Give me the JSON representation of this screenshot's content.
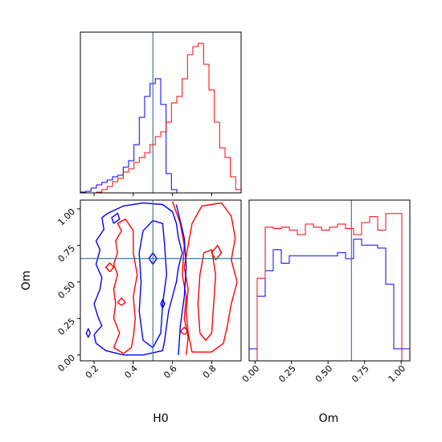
{
  "chart_data": {
    "type": "corner",
    "parameters": [
      "H0",
      "Om"
    ],
    "truth": {
      "H0": 0.5,
      "Om": 0.66
    },
    "colors": {
      "blue": "#0000ff",
      "red": "#ff0000",
      "truth": "#2a6fa0"
    },
    "ranges": {
      "H0": [
        0.13,
        0.95
      ],
      "Om": [
        -0.04,
        1.06
      ]
    },
    "ticks": {
      "H0": [
        "0.2",
        "0.4",
        "0.6",
        "0.8"
      ],
      "Om": [
        "0.00",
        "0.25",
        "0.50",
        "0.75",
        "1.00"
      ]
    },
    "H0_hist": {
      "edges": [
        0.13,
        0.1573,
        0.1847,
        0.212,
        0.2393,
        0.2667,
        0.294,
        0.3213,
        0.3487,
        0.376,
        0.4033,
        0.4307,
        0.458,
        0.4853,
        0.5127,
        0.54,
        0.5673,
        0.5947,
        0.622,
        0.6493,
        0.6767,
        0.704,
        0.7313,
        0.7587,
        0.786,
        0.8133,
        0.8407,
        0.868,
        0.8953,
        0.9227,
        0.95
      ],
      "blue": [
        0.005,
        0.01,
        0.03,
        0.05,
        0.065,
        0.08,
        0.1,
        0.11,
        0.16,
        0.2,
        0.3,
        0.47,
        0.6,
        0.68,
        0.71,
        0.55,
        0.12,
        0.02,
        0,
        0,
        0,
        0,
        0,
        0,
        0,
        0,
        0,
        0,
        0,
        0
      ],
      "red": [
        0,
        0,
        0,
        0.005,
        0.02,
        0.04,
        0.07,
        0.09,
        0.13,
        0.15,
        0.19,
        0.22,
        0.25,
        0.3,
        0.35,
        0.38,
        0.44,
        0.56,
        0.6,
        0.71,
        0.86,
        0.91,
        0.93,
        0.8,
        0.64,
        0.44,
        0.28,
        0.22,
        0.1,
        0.02
      ]
    },
    "Om_hist": {
      "edges": [
        -0.04,
        0.015,
        0.07,
        0.125,
        0.18,
        0.235,
        0.29,
        0.345,
        0.4,
        0.455,
        0.51,
        0.565,
        0.62,
        0.675,
        0.73,
        0.785,
        0.84,
        0.895,
        0.95,
        1.005,
        1.06
      ],
      "blue": [
        0.08,
        0.43,
        0.6,
        0.74,
        0.65,
        0.7,
        0.7,
        0.7,
        0.7,
        0.7,
        0.7,
        0.72,
        0.68,
        0.81,
        0.77,
        0.77,
        0.75,
        0.51,
        0.08,
        0.08
      ],
      "red": [
        0,
        0.55,
        0.89,
        0.88,
        0.89,
        0.87,
        0.84,
        0.91,
        0.89,
        0.87,
        0.89,
        0.91,
        0.88,
        0.84,
        0.92,
        0.96,
        0.87,
        0.98,
        0.98,
        0
      ]
    },
    "contours": {
      "blue": [
        [
          [
            0.2,
            0.14
          ],
          [
            0.24,
            0.2
          ],
          [
            0.22,
            0.26
          ],
          [
            0.2,
            0.35
          ],
          [
            0.23,
            0.45
          ],
          [
            0.24,
            0.53
          ],
          [
            0.21,
            0.62
          ],
          [
            0.23,
            0.72
          ],
          [
            0.21,
            0.78
          ],
          [
            0.25,
            0.86
          ],
          [
            0.24,
            0.94
          ],
          [
            0.27,
            0.97
          ],
          [
            0.35,
            1.02
          ],
          [
            0.45,
            1.04
          ],
          [
            0.55,
            1.03
          ],
          [
            0.6,
            0.98
          ],
          [
            0.62,
            0.9
          ],
          [
            0.63,
            0.8
          ],
          [
            0.65,
            0.7
          ],
          [
            0.63,
            0.6
          ],
          [
            0.62,
            0.5
          ],
          [
            0.6,
            0.4
          ],
          [
            0.58,
            0.3
          ],
          [
            0.57,
            0.2
          ],
          [
            0.56,
            0.1
          ],
          [
            0.55,
            0.03
          ],
          [
            0.45,
            0.0
          ],
          [
            0.35,
            0.0
          ],
          [
            0.26,
            0.03
          ],
          [
            0.21,
            0.08
          ],
          [
            0.2,
            0.14
          ]
        ],
        [
          [
            0.45,
            0.1
          ],
          [
            0.43,
            0.3
          ],
          [
            0.44,
            0.5
          ],
          [
            0.43,
            0.7
          ],
          [
            0.45,
            0.85
          ],
          [
            0.5,
            0.92
          ],
          [
            0.55,
            0.9
          ],
          [
            0.56,
            0.75
          ],
          [
            0.57,
            0.55
          ],
          [
            0.55,
            0.35
          ],
          [
            0.54,
            0.15
          ],
          [
            0.5,
            0.05
          ],
          [
            0.45,
            0.1
          ]
        ],
        [
          [
            0.5,
            0.62
          ],
          [
            0.52,
            0.66
          ],
          [
            0.5,
            0.7
          ],
          [
            0.48,
            0.66
          ],
          [
            0.5,
            0.62
          ]
        ],
        [
          [
            0.17,
            0.12
          ],
          [
            0.18,
            0.15
          ],
          [
            0.17,
            0.18
          ],
          [
            0.16,
            0.15
          ],
          [
            0.17,
            0.12
          ]
        ],
        [
          [
            0.55,
            0.32
          ],
          [
            0.56,
            0.35
          ],
          [
            0.55,
            0.38
          ],
          [
            0.54,
            0.35
          ],
          [
            0.55,
            0.32
          ]
        ],
        [
          [
            0.3,
            0.9
          ],
          [
            0.33,
            0.93
          ],
          [
            0.32,
            0.97
          ],
          [
            0.29,
            0.94
          ],
          [
            0.3,
            0.9
          ]
        ],
        [
          [
            0.62,
            1.03
          ],
          [
            0.66,
            0.8
          ],
          [
            0.67,
            0.6
          ],
          [
            0.66,
            0.4
          ],
          [
            0.64,
            0.2
          ],
          [
            0.63,
            0.0
          ]
        ]
      ],
      "red": [
        [
          [
            0.3,
            0.05
          ],
          [
            0.33,
            0.15
          ],
          [
            0.3,
            0.25
          ],
          [
            0.31,
            0.35
          ],
          [
            0.3,
            0.45
          ],
          [
            0.32,
            0.55
          ],
          [
            0.3,
            0.62
          ],
          [
            0.32,
            0.7
          ],
          [
            0.31,
            0.78
          ],
          [
            0.34,
            0.85
          ],
          [
            0.32,
            0.9
          ],
          [
            0.36,
            0.93
          ],
          [
            0.4,
            0.85
          ],
          [
            0.4,
            0.7
          ],
          [
            0.42,
            0.55
          ],
          [
            0.4,
            0.4
          ],
          [
            0.41,
            0.25
          ],
          [
            0.4,
            0.12
          ],
          [
            0.39,
            0.05
          ],
          [
            0.35,
            0.01
          ],
          [
            0.3,
            0.05
          ]
        ],
        [
          [
            0.7,
            0.02
          ],
          [
            0.68,
            0.15
          ],
          [
            0.67,
            0.3
          ],
          [
            0.68,
            0.45
          ],
          [
            0.66,
            0.6
          ],
          [
            0.68,
            0.75
          ],
          [
            0.7,
            0.9
          ],
          [
            0.75,
            1.02
          ],
          [
            0.85,
            1.04
          ],
          [
            0.9,
            0.95
          ],
          [
            0.92,
            0.8
          ],
          [
            0.9,
            0.65
          ],
          [
            0.93,
            0.5
          ],
          [
            0.9,
            0.35
          ],
          [
            0.88,
            0.2
          ],
          [
            0.86,
            0.08
          ],
          [
            0.8,
            0.02
          ],
          [
            0.7,
            0.02
          ]
        ],
        [
          [
            0.74,
            0.15
          ],
          [
            0.73,
            0.35
          ],
          [
            0.74,
            0.55
          ],
          [
            0.76,
            0.7
          ],
          [
            0.8,
            0.72
          ],
          [
            0.82,
            0.55
          ],
          [
            0.81,
            0.35
          ],
          [
            0.8,
            0.15
          ],
          [
            0.77,
            0.1
          ],
          [
            0.74,
            0.15
          ]
        ],
        [
          [
            0.6,
            1.05
          ],
          [
            0.64,
            0.9
          ],
          [
            0.66,
            0.75
          ],
          [
            0.65,
            0.55
          ],
          [
            0.67,
            0.4
          ],
          [
            0.66,
            0.25
          ],
          [
            0.68,
            0.12
          ],
          [
            0.67,
            0.0
          ]
        ],
        [
          [
            0.28,
            0.57
          ],
          [
            0.3,
            0.6
          ],
          [
            0.28,
            0.63
          ],
          [
            0.26,
            0.6
          ],
          [
            0.28,
            0.57
          ]
        ],
        [
          [
            0.66,
            0.14
          ],
          [
            0.68,
            0.16
          ],
          [
            0.66,
            0.19
          ],
          [
            0.64,
            0.16
          ],
          [
            0.66,
            0.14
          ]
        ],
        [
          [
            0.34,
            0.34
          ],
          [
            0.36,
            0.36
          ],
          [
            0.34,
            0.39
          ],
          [
            0.32,
            0.36
          ],
          [
            0.34,
            0.34
          ]
        ],
        [
          [
            0.82,
            0.65
          ],
          [
            0.85,
            0.7
          ],
          [
            0.83,
            0.75
          ],
          [
            0.8,
            0.7
          ],
          [
            0.82,
            0.65
          ]
        ]
      ]
    }
  }
}
